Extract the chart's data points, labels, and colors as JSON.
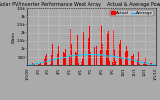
{
  "title": "Solar PV/Inverter Performance West Array    Actual & Average Power Output",
  "title_fontsize": 3.5,
  "bg_color": "#aaaaaa",
  "plot_bg_color": "#aaaaaa",
  "bar_color": "#ff0000",
  "avg_line_color": "#00ccff",
  "legend_actual_color": "#ff0000",
  "legend_avg_color": "#00aaff",
  "legend_fontsize": 3.0,
  "ylabel": "Watts",
  "ylabel_fontsize": 3.0,
  "xlabel_fontsize": 2.8,
  "ylim": [
    0,
    3500
  ],
  "ytick_vals": [
    500,
    1000,
    1500,
    2000,
    2500,
    3000,
    3500
  ],
  "ytick_labels": [
    "500",
    "1k",
    "1.5k",
    "2k",
    "2.5k",
    "3k",
    "3.5k"
  ],
  "grid_color": "#dddddd",
  "grid_style": ":",
  "n_days": 365,
  "peak_watt": 3200,
  "month_days": [
    0,
    31,
    59,
    90,
    120,
    151,
    181,
    212,
    243,
    273,
    304,
    334,
    365
  ],
  "month_labels": [
    "1/1/09",
    "2/1",
    "3/1",
    "4/1",
    "5/1",
    "6/1",
    "7/1",
    "8/1",
    "9/1",
    "10/1",
    "11/1",
    "12/1",
    "1/1/10"
  ]
}
